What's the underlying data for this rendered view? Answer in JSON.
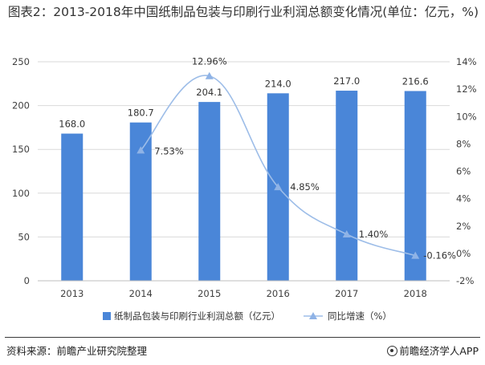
{
  "header": {
    "title": "图表2：2013-2018年中国纸制品包装与印刷行业利润总额变化情况(单位：亿元，%)"
  },
  "footer": {
    "source": "资料来源：前瞻产业研究院整理",
    "brand": "前瞻经济学人APP"
  },
  "colors": {
    "bar": "#4a86d8",
    "line": "#9dbde8",
    "marker": "#8fb3e6",
    "grid": "#d9d9d9",
    "axis_text": "#404040"
  },
  "icons": {
    "brand_logo": "qianzhan-logo-icon"
  },
  "chart_data": {
    "type": "bar",
    "categories": [
      "2013",
      "2014",
      "2015",
      "2016",
      "2017",
      "2018"
    ],
    "series": [
      {
        "name": "纸制品包装与印刷行业利润总额（亿元）",
        "type": "bar",
        "axis": "left",
        "values": [
          168.0,
          180.7,
          204.1,
          214.0,
          217.0,
          216.6
        ],
        "labels": [
          "168.0",
          "180.7",
          "204.1",
          "214.0",
          "217.0",
          "216.6"
        ]
      },
      {
        "name": "同比增速（%）",
        "type": "line",
        "axis": "right",
        "values": [
          null,
          7.53,
          12.96,
          4.85,
          1.4,
          -0.16
        ],
        "labels": [
          "",
          "7.53%",
          "12.96%",
          "4.85%",
          "1.40%",
          "-0.16%"
        ]
      }
    ],
    "y_left": {
      "lim": [
        0,
        250
      ],
      "ticks": [
        "0",
        "50",
        "100",
        "150",
        "200",
        "250"
      ]
    },
    "y_right": {
      "lim": [
        -2,
        14
      ],
      "ticks": [
        "-2%",
        "0%",
        "2%",
        "4%",
        "6%",
        "8%",
        "10%",
        "12%",
        "14%"
      ]
    },
    "grid": true,
    "legend": "bottom"
  }
}
